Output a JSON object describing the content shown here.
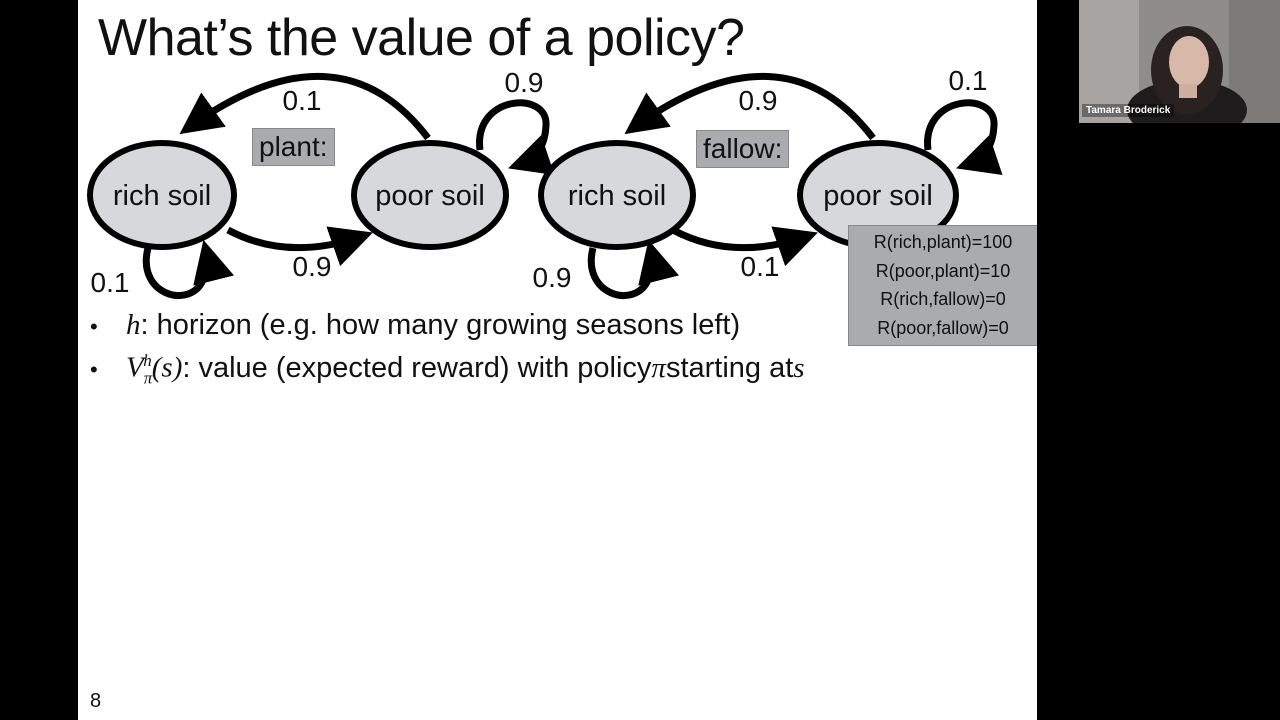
{
  "slide": {
    "title": "What’s the value of a policy?",
    "page_number": "8",
    "diagrams": [
      {
        "action_label": "plant:",
        "state_left": "rich soil",
        "state_right": "poor soil",
        "p_top": "0.1",
        "p_self_right": "0.9",
        "p_bottom": "0.9",
        "p_self_left": "0.1"
      },
      {
        "action_label": "fallow:",
        "state_left": "rich soil",
        "state_right": "poor soil",
        "p_top": "0.9",
        "p_self_right": "0.1",
        "p_bottom": "0.1",
        "p_self_left": "0.9"
      }
    ],
    "rewards": [
      "R(rich,plant)=100",
      "R(poor,plant)=10",
      "R(rich,fallow)=0",
      "R(poor,fallow)=0"
    ],
    "bullets": [
      {
        "symbol": "h",
        "text": ": horizon (e.g. how many growing seasons left)"
      },
      {
        "text_a": ": value (expected reward) with policy ",
        "pi": "π",
        "text_b": " starting at ",
        "s": "s"
      }
    ]
  },
  "video": {
    "participant_name": "Tamara Broderick"
  },
  "colors": {
    "slide_background": "#ffffff",
    "state_fill": "#d6d8dc",
    "box_fill": "#a9abaf",
    "outer_background": "#000000"
  }
}
